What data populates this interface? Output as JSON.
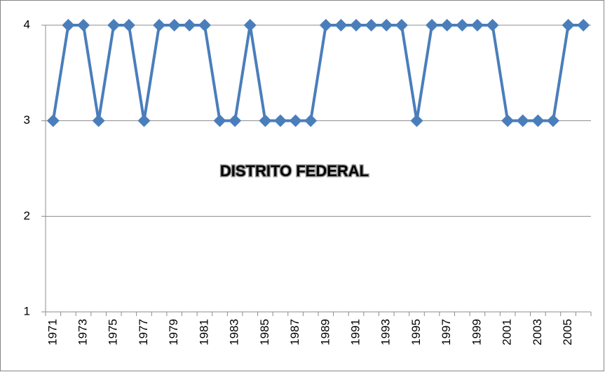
{
  "chart_data": {
    "type": "line",
    "annotation": "DISTRITO FEDERAL",
    "categories": [
      "1971",
      null,
      "1973",
      null,
      "1975",
      null,
      "1977",
      null,
      "1979",
      null,
      "1981",
      null,
      "1983",
      null,
      "1985",
      null,
      "1987",
      null,
      "1989",
      null,
      "1991",
      null,
      "1993",
      null,
      "1995",
      null,
      "1997",
      null,
      "1999",
      null,
      "2001",
      null,
      "2003",
      null,
      "2005",
      null
    ],
    "series": [
      {
        "color": "#4a7ebb",
        "values": [
          3,
          4,
          4,
          3,
          4,
          4,
          3,
          4,
          4,
          4,
          4,
          3,
          3,
          4,
          3,
          3,
          3,
          3,
          4,
          4,
          4,
          4,
          4,
          4,
          3,
          4,
          4,
          4,
          4,
          4,
          3,
          3,
          3,
          3,
          4,
          4
        ]
      }
    ],
    "ylim": [
      1,
      4
    ],
    "yticks": [
      1,
      2,
      3,
      4
    ],
    "grid": true
  }
}
